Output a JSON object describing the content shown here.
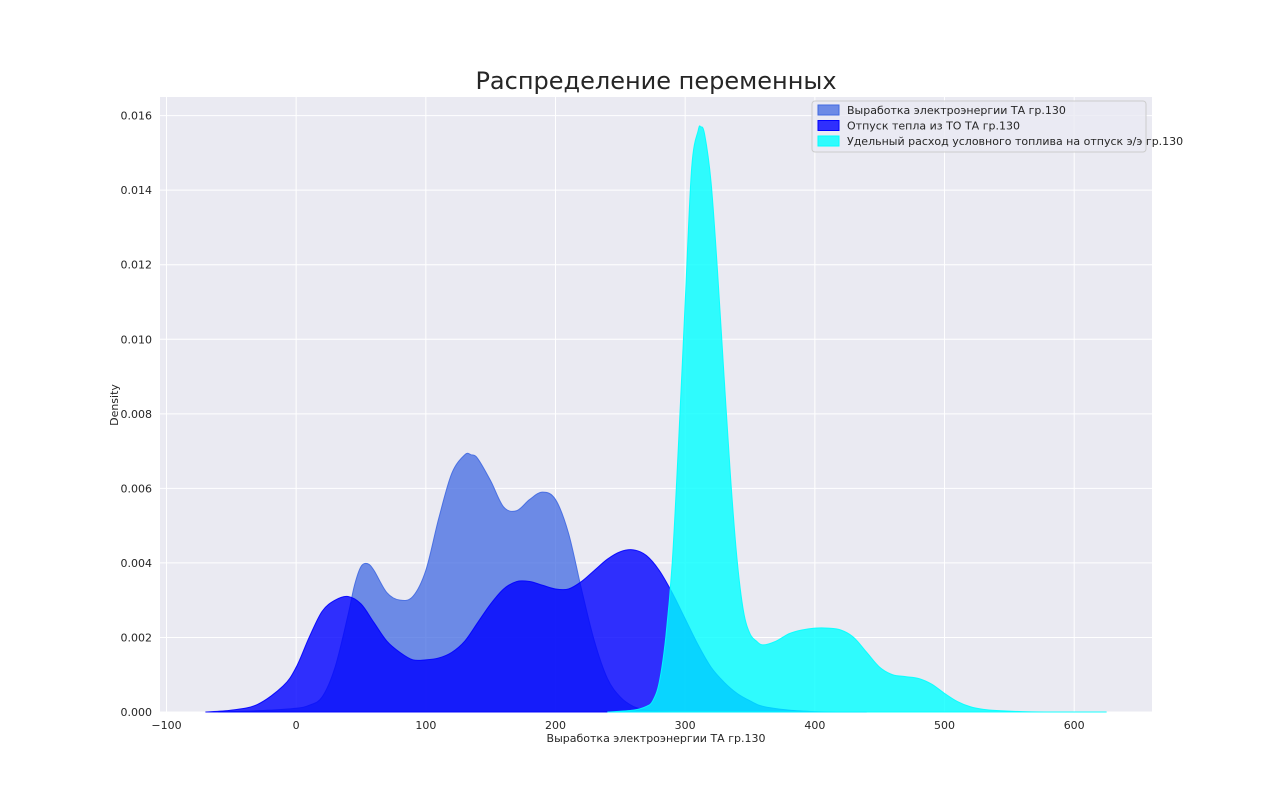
{
  "chart_data": {
    "type": "area",
    "title": "Распределение переменных",
    "xlabel": "Выработка электроэнергии ТА гр.130",
    "ylabel": "Density",
    "xlim": [
      -105,
      660
    ],
    "ylim": [
      0,
      0.0165
    ],
    "x_ticks": [
      -100,
      0,
      100,
      200,
      300,
      400,
      500,
      600
    ],
    "x_tick_labels": [
      "−100",
      "0",
      "100",
      "200",
      "300",
      "400",
      "500",
      "600"
    ],
    "y_ticks": [
      0,
      0.002,
      0.004,
      0.006,
      0.008,
      0.01,
      0.012,
      0.014,
      0.016
    ],
    "y_tick_labels": [
      "0.000",
      "0.002",
      "0.004",
      "0.006",
      "0.008",
      "0.010",
      "0.012",
      "0.014",
      "0.016"
    ],
    "grid": true,
    "background": "#eaeaf2",
    "legend_position": "top-right",
    "series": [
      {
        "name": "Выработка электроэнергии ТА гр.130",
        "color": "#4169e1",
        "alpha": 0.75,
        "x": [
          -60,
          -40,
          -20,
          0,
          10,
          20,
          30,
          40,
          45,
          50,
          55,
          60,
          70,
          80,
          90,
          100,
          110,
          120,
          130,
          135,
          140,
          150,
          160,
          170,
          180,
          190,
          200,
          210,
          220,
          230,
          240,
          250,
          260,
          270,
          280,
          290
        ],
        "y": [
          0,
          2e-05,
          5e-05,
          0.0001,
          0.00018,
          0.0004,
          0.0012,
          0.0026,
          0.0034,
          0.0039,
          0.00398,
          0.0038,
          0.0032,
          0.003,
          0.0031,
          0.0038,
          0.0052,
          0.0064,
          0.0069,
          0.0069,
          0.0068,
          0.0062,
          0.0055,
          0.0054,
          0.0057,
          0.0059,
          0.0057,
          0.0048,
          0.0033,
          0.0019,
          0.0009,
          0.0004,
          0.00015,
          5e-05,
          2e-05,
          0
        ]
      },
      {
        "name": "Отпуск тепла из ТО ТА гр.130",
        "color": "#0000ff",
        "alpha": 0.8,
        "x": [
          -70,
          -50,
          -30,
          -10,
          0,
          10,
          20,
          30,
          40,
          50,
          60,
          70,
          80,
          90,
          100,
          110,
          120,
          130,
          140,
          150,
          160,
          170,
          180,
          190,
          200,
          210,
          220,
          230,
          240,
          250,
          260,
          270,
          280,
          290,
          300,
          310,
          320,
          330,
          340,
          350,
          360,
          380,
          400,
          420,
          440
        ],
        "y": [
          0,
          5e-05,
          0.0002,
          0.0007,
          0.0012,
          0.002,
          0.0027,
          0.003,
          0.0031,
          0.0029,
          0.0024,
          0.0019,
          0.0016,
          0.0014,
          0.0014,
          0.00145,
          0.0016,
          0.0019,
          0.0024,
          0.0029,
          0.0033,
          0.0035,
          0.0035,
          0.0034,
          0.0033,
          0.0033,
          0.0035,
          0.0038,
          0.0041,
          0.0043,
          0.00435,
          0.0042,
          0.0038,
          0.0032,
          0.0025,
          0.0018,
          0.0012,
          0.0008,
          0.0005,
          0.0003,
          0.00015,
          5e-05,
          1e-05,
          0,
          0
        ]
      },
      {
        "name": "Удельный расход условного топлива на отпуск э/э гр.130",
        "color": "#00ffff",
        "alpha": 0.8,
        "x": [
          240,
          260,
          270,
          275,
          280,
          285,
          290,
          295,
          300,
          305,
          310,
          312,
          315,
          320,
          325,
          330,
          335,
          340,
          345,
          350,
          355,
          360,
          370,
          380,
          390,
          400,
          410,
          420,
          430,
          440,
          450,
          460,
          470,
          480,
          490,
          500,
          510,
          520,
          530,
          540,
          560,
          580,
          600,
          625
        ],
        "y": [
          0,
          5e-05,
          0.00015,
          0.0003,
          0.0008,
          0.002,
          0.004,
          0.0073,
          0.011,
          0.0146,
          0.0156,
          0.0157,
          0.0155,
          0.0142,
          0.0118,
          0.009,
          0.0063,
          0.0041,
          0.0027,
          0.0021,
          0.0019,
          0.0018,
          0.0019,
          0.0021,
          0.0022,
          0.00225,
          0.00225,
          0.0022,
          0.002,
          0.0016,
          0.0012,
          0.001,
          0.00095,
          0.0009,
          0.00075,
          0.0005,
          0.00028,
          0.00014,
          7e-05,
          4e-05,
          1e-05,
          0,
          0,
          0
        ]
      }
    ]
  }
}
